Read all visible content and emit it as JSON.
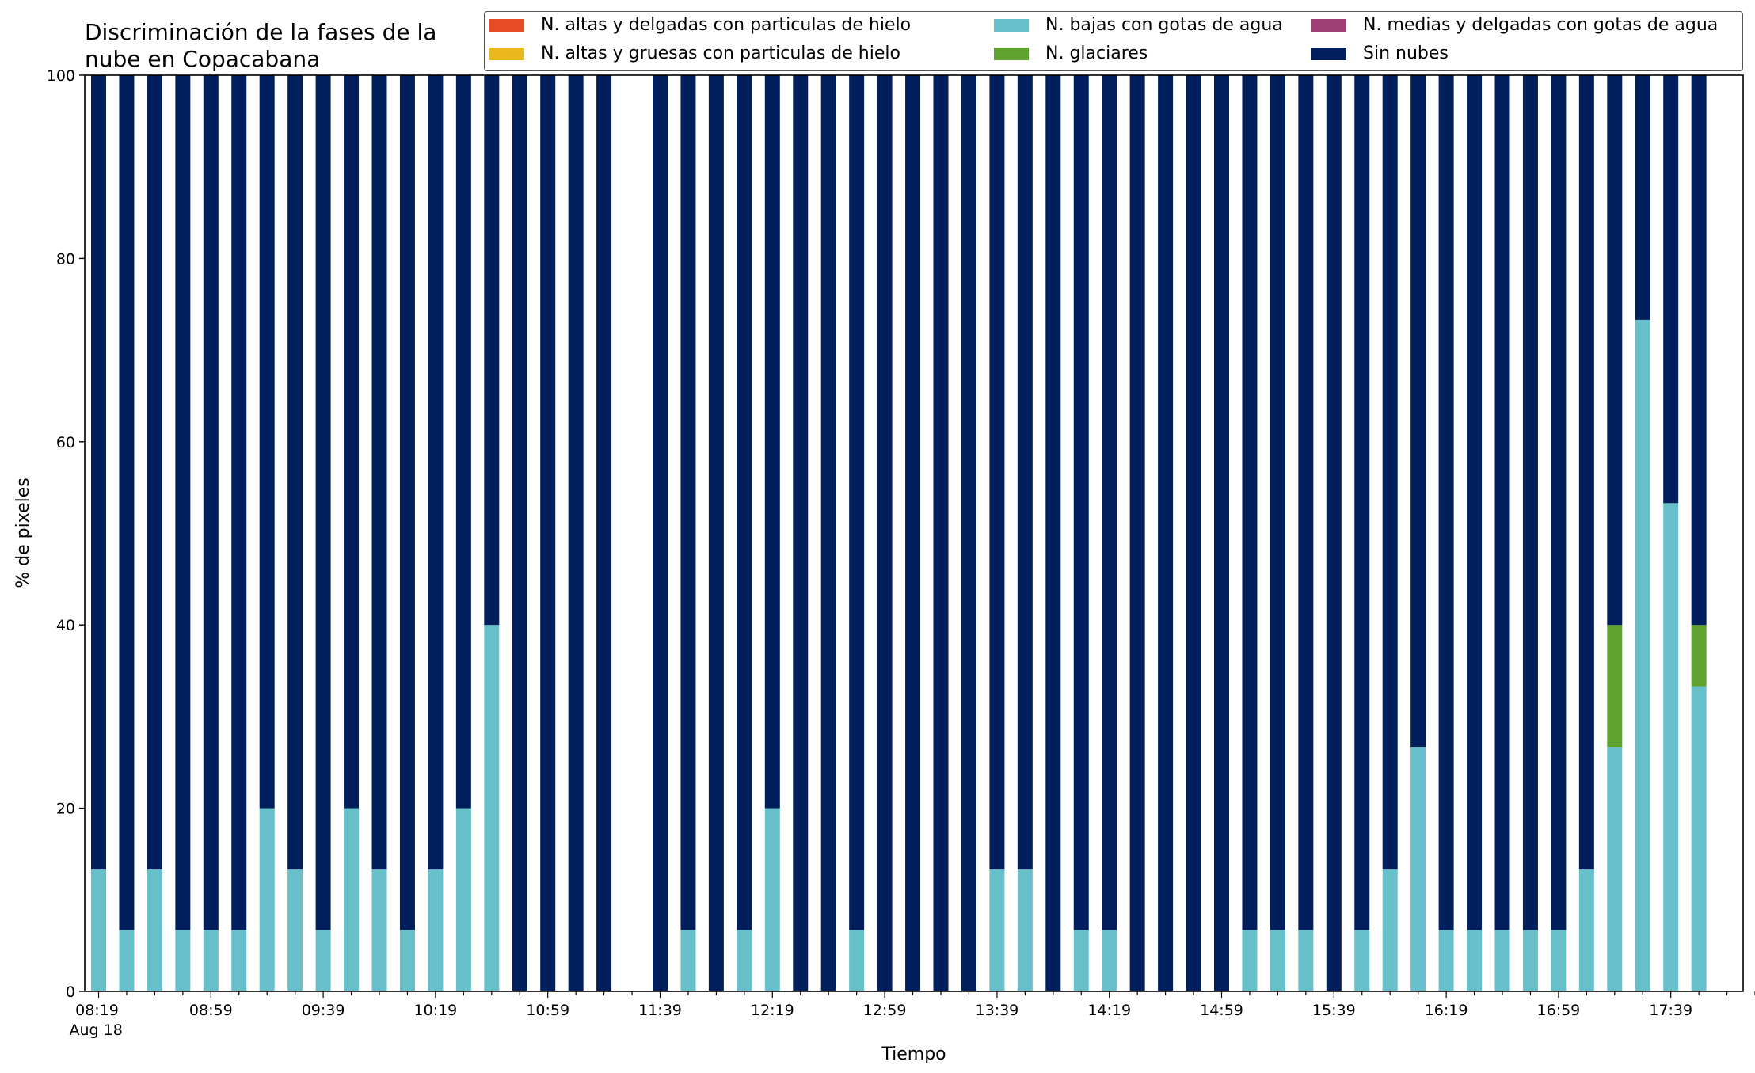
{
  "chart_data": {
    "type": "bar",
    "stacked": true,
    "title_lines": [
      "Discriminación de la fases de la",
      "nube en Copacabana"
    ],
    "xlabel": "Tiempo",
    "ylabel": "% de pixeles",
    "ylim": [
      0,
      100
    ],
    "yticks": [
      0,
      20,
      40,
      60,
      80,
      100
    ],
    "x_tick_labels": [
      "08:19",
      "08:59",
      "09:39",
      "10:19",
      "10:59",
      "11:39",
      "12:19",
      "12:59",
      "13:39",
      "14:19",
      "14:59",
      "15:39",
      "16:19",
      "16:59",
      "17:39"
    ],
    "x_date_label": "Aug 18",
    "x_start": "08:19",
    "x_interval_minutes": 10,
    "legend": {
      "position": "top-right",
      "columns": 3
    },
    "series": [
      {
        "name": "N. altas y delgadas con particulas de hielo",
        "color": "#e64b26",
        "values": [
          0,
          0,
          0,
          0,
          0,
          0,
          0,
          0,
          0,
          0,
          0,
          0,
          0,
          0,
          0,
          0,
          0,
          0,
          0,
          0,
          0,
          0,
          0,
          0,
          0,
          0,
          0,
          0,
          0,
          0,
          0,
          0,
          0,
          0,
          0,
          0,
          0,
          0,
          0,
          0,
          0,
          0,
          0,
          0,
          0,
          0,
          0,
          0,
          0,
          0,
          0,
          0,
          0,
          0,
          0,
          0,
          0,
          0,
          0
        ]
      },
      {
        "name": "N. altas y gruesas con particulas de hielo",
        "color": "#e8b81c",
        "values": [
          0,
          0,
          0,
          0,
          0,
          0,
          0,
          0,
          0,
          0,
          0,
          0,
          0,
          0,
          0,
          0,
          0,
          0,
          0,
          0,
          0,
          0,
          0,
          0,
          0,
          0,
          0,
          0,
          0,
          0,
          0,
          0,
          0,
          0,
          0,
          0,
          0,
          0,
          0,
          0,
          0,
          0,
          0,
          0,
          0,
          0,
          0,
          0,
          0,
          0,
          0,
          0,
          0,
          0,
          0,
          0,
          0,
          0,
          0
        ]
      },
      {
        "name": "N. bajas con gotas de agua",
        "color": "#67bfca",
        "values": [
          13.3,
          6.7,
          13.3,
          6.7,
          6.7,
          6.7,
          20,
          13.3,
          6.7,
          20,
          13.3,
          6.7,
          13.3,
          20,
          40,
          0,
          0,
          0,
          0,
          null,
          0,
          6.7,
          0,
          6.7,
          20,
          0,
          0,
          6.7,
          0,
          0,
          0,
          0,
          13.3,
          13.3,
          0,
          6.7,
          6.7,
          0,
          0,
          0,
          0,
          6.7,
          6.7,
          6.7,
          0,
          6.7,
          13.3,
          26.7,
          6.7,
          6.7,
          6.7,
          6.7,
          6.7,
          13.3,
          26.7,
          73.3,
          53.3,
          33.3
        ]
      },
      {
        "name": "N. glaciares",
        "color": "#5fa22f",
        "values": [
          0,
          0,
          0,
          0,
          0,
          0,
          0,
          0,
          0,
          0,
          0,
          0,
          0,
          0,
          0,
          0,
          0,
          0,
          0,
          null,
          0,
          0,
          0,
          0,
          0,
          0,
          0,
          0,
          0,
          0,
          0,
          0,
          0,
          0,
          0,
          0,
          0,
          0,
          0,
          0,
          0,
          0,
          0,
          0,
          0,
          0,
          0,
          0,
          0,
          0,
          0,
          0,
          0,
          0,
          13.3,
          0,
          0,
          6.7
        ]
      },
      {
        "name": "N. medias y delgadas con gotas de agua",
        "color": "#a03e76",
        "values": [
          0,
          0,
          0,
          0,
          0,
          0,
          0,
          0,
          0,
          0,
          0,
          0,
          0,
          0,
          0,
          0,
          0,
          0,
          0,
          null,
          0,
          0,
          0,
          0,
          0,
          0,
          0,
          0,
          0,
          0,
          0,
          0,
          0,
          0,
          0,
          0,
          0,
          0,
          0,
          0,
          0,
          0,
          0,
          0,
          0,
          0,
          0,
          0,
          0,
          0,
          0,
          0,
          0,
          0,
          0,
          0,
          0,
          0
        ]
      },
      {
        "name": "Sin nubes",
        "color": "#011f5c",
        "values": [
          86.7,
          93.3,
          86.7,
          93.3,
          93.3,
          93.3,
          80,
          86.7,
          93.3,
          80,
          86.7,
          93.3,
          86.7,
          80,
          60,
          100,
          100,
          100,
          100,
          null,
          100,
          93.3,
          100,
          93.3,
          80,
          100,
          100,
          93.3,
          100,
          100,
          100,
          100,
          86.7,
          86.7,
          100,
          93.3,
          93.3,
          100,
          100,
          100,
          100,
          93.3,
          93.3,
          93.3,
          100,
          93.3,
          86.7,
          73.3,
          93.3,
          93.3,
          93.3,
          93.3,
          93.3,
          86.7,
          60,
          26.7,
          46.7,
          60
        ]
      }
    ]
  }
}
